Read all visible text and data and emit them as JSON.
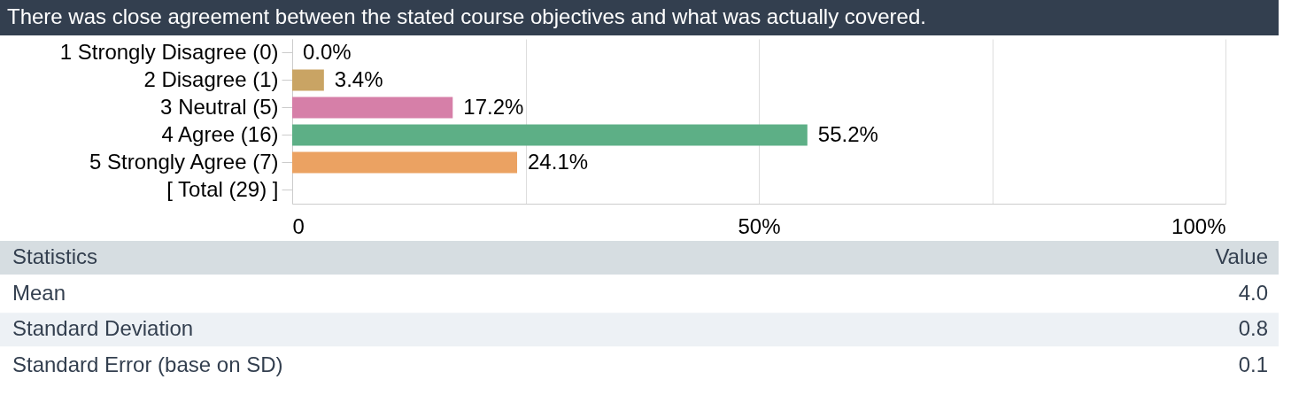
{
  "chart_data": {
    "type": "bar",
    "orientation": "horizontal",
    "title": "There was close agreement between the stated course objectives and what was actually covered.",
    "categories": [
      "1 Strongly Disagree (0)",
      "2 Disagree (1)",
      "3 Neutral (5)",
      "4 Agree (16)",
      "5 Strongly Agree (7)",
      "[ Total (29) ]"
    ],
    "values": [
      0,
      3.4,
      17.2,
      55.2,
      24.1,
      null
    ],
    "colors": [
      "#8fa6c8",
      "#c9a464",
      "#d67fa8",
      "#5daf86",
      "#eba262",
      null
    ],
    "value_labels": [
      "0.0%",
      "3.4%",
      "17.2%",
      "55.2%",
      "24.1%",
      null
    ],
    "xlim": [
      0,
      100
    ],
    "xticks": [
      0,
      {
        "value": 25,
        "label": null
      },
      {
        "value": 50,
        "label": "50%"
      },
      {
        "value": 75,
        "label": null
      },
      {
        "value": 100,
        "label": "100%"
      }
    ],
    "grid": "x",
    "annotations": [
      "Statistics",
      "Value",
      "Mean",
      "4.0",
      "Standard Deviation",
      "0.8",
      "Standard Error (base on SD)",
      "0.1"
    ]
  }
}
